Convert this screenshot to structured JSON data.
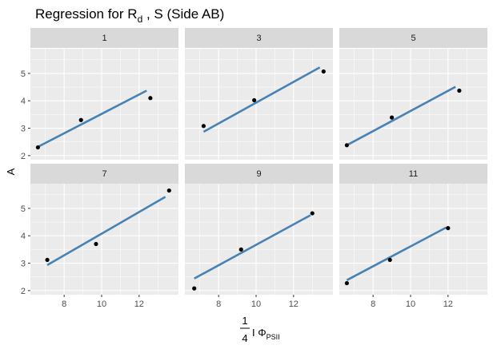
{
  "chart_data": {
    "type": "scatter",
    "title_main": "Regression for  R",
    "title_sub": "d",
    "title_rest": " , S (Side AB)",
    "ylabel": "A",
    "xlabel_frac_num": "1",
    "xlabel_frac_den": "4",
    "xlabel_main": "I Φ",
    "xlabel_sub": "PSII",
    "xlim": [
      6.2,
      14.1
    ],
    "ylim": [
      1.85,
      5.9
    ],
    "x_ticks": [
      8,
      10,
      12
    ],
    "y_ticks": [
      2,
      3,
      4,
      5
    ],
    "panel_bg": "#ebebeb",
    "strip_bg": "#d9d9d9",
    "line_color": "#4682b4",
    "point_color": "#000000",
    "panels": [
      {
        "label": "1",
        "points": [
          [
            6.6,
            2.3
          ],
          [
            8.9,
            3.3
          ],
          [
            12.6,
            4.1
          ]
        ],
        "line": [
          [
            6.6,
            2.32
          ],
          [
            12.4,
            4.37
          ]
        ]
      },
      {
        "label": "3",
        "points": [
          [
            7.2,
            3.08
          ],
          [
            9.9,
            4.02
          ],
          [
            13.6,
            5.07
          ]
        ],
        "line": [
          [
            7.2,
            2.87
          ],
          [
            13.4,
            5.22
          ]
        ]
      },
      {
        "label": "5",
        "points": [
          [
            6.6,
            2.38
          ],
          [
            9.0,
            3.39
          ],
          [
            12.6,
            4.37
          ]
        ],
        "line": [
          [
            6.6,
            2.38
          ],
          [
            12.4,
            4.51
          ]
        ]
      },
      {
        "label": "7",
        "points": [
          [
            7.1,
            3.12
          ],
          [
            9.7,
            3.7
          ],
          [
            13.6,
            5.65
          ]
        ],
        "line": [
          [
            7.1,
            2.93
          ],
          [
            13.4,
            5.42
          ]
        ]
      },
      {
        "label": "9",
        "points": [
          [
            6.7,
            2.08
          ],
          [
            9.2,
            3.5
          ],
          [
            13.0,
            4.82
          ]
        ],
        "line": [
          [
            6.7,
            2.44
          ],
          [
            12.9,
            4.75
          ]
        ]
      },
      {
        "label": "11",
        "points": [
          [
            6.6,
            2.27
          ],
          [
            8.9,
            3.12
          ],
          [
            12.0,
            4.28
          ]
        ],
        "line": [
          [
            6.6,
            2.38
          ],
          [
            11.9,
            4.3
          ]
        ]
      }
    ]
  }
}
